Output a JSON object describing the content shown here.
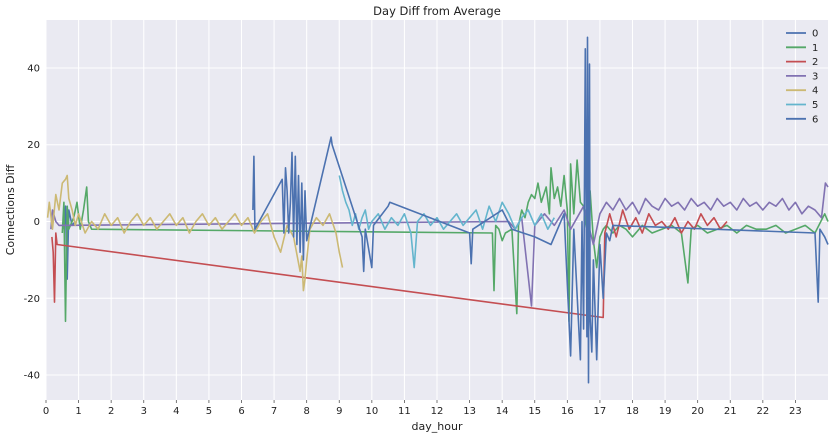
{
  "chart_data": {
    "type": "line",
    "title": "Day Diff from Average",
    "xlabel": "day_hour",
    "ylabel": "Connections Diff",
    "xlim": [
      0,
      24
    ],
    "ylim": [
      -46.5,
      52.5
    ],
    "x_ticks": [
      0,
      1,
      2,
      3,
      4,
      5,
      6,
      7,
      8,
      9,
      10,
      11,
      12,
      13,
      14,
      15,
      16,
      17,
      18,
      19,
      20,
      21,
      22,
      23
    ],
    "y_ticks": [
      -40,
      -20,
      0,
      20,
      40
    ],
    "grid": true,
    "legend_position": "top-right",
    "series": [
      {
        "name": "0",
        "color": "#4c72b0",
        "points": [
          [
            0.55,
            -2
          ],
          [
            0.6,
            4
          ],
          [
            0.65,
            -15
          ],
          [
            0.7,
            3
          ],
          [
            0.8,
            -1
          ],
          [
            0.9,
            0
          ]
        ]
      },
      {
        "name": "1",
        "color": "#55a868",
        "points": [
          [
            0.5,
            -3
          ],
          [
            0.55,
            5
          ],
          [
            0.6,
            -26
          ],
          [
            0.65,
            4
          ],
          [
            0.7,
            -2
          ],
          [
            0.85,
            1
          ],
          [
            0.95,
            5
          ],
          [
            1.05,
            -2
          ],
          [
            1.15,
            3
          ],
          [
            1.25,
            9
          ],
          [
            1.3,
            0
          ],
          [
            1.4,
            -2
          ],
          [
            13.7,
            -3
          ],
          [
            13.75,
            -18
          ],
          [
            13.8,
            -1
          ],
          [
            13.9,
            -2
          ],
          [
            14.0,
            -5
          ],
          [
            14.1,
            -3
          ],
          [
            14.3,
            -2
          ],
          [
            14.45,
            -24
          ],
          [
            14.5,
            -1
          ],
          [
            14.6,
            3
          ],
          [
            14.7,
            1
          ],
          [
            14.8,
            5
          ],
          [
            14.9,
            7
          ],
          [
            15.0,
            6
          ],
          [
            15.1,
            10
          ],
          [
            15.2,
            5
          ],
          [
            15.35,
            9
          ],
          [
            15.45,
            2
          ],
          [
            15.5,
            14
          ],
          [
            15.6,
            6
          ],
          [
            15.7,
            9
          ],
          [
            15.8,
            4
          ],
          [
            15.9,
            12
          ],
          [
            16.0,
            3
          ],
          [
            16.05,
            -26
          ],
          [
            16.1,
            15
          ],
          [
            16.2,
            2
          ],
          [
            16.3,
            16
          ],
          [
            16.4,
            5
          ],
          [
            16.5,
            4
          ],
          [
            16.6,
            -3
          ],
          [
            16.7,
            8
          ],
          [
            16.8,
            -5
          ],
          [
            16.9,
            -12
          ],
          [
            17.0,
            -4
          ],
          [
            17.1,
            -2
          ],
          [
            17.2,
            -1
          ],
          [
            17.4,
            -3
          ],
          [
            17.6,
            -1
          ],
          [
            17.8,
            -2
          ],
          [
            18.0,
            -4
          ],
          [
            18.3,
            -1
          ],
          [
            18.6,
            -3
          ],
          [
            18.9,
            -2
          ],
          [
            19.2,
            -1
          ],
          [
            19.5,
            -3
          ],
          [
            19.7,
            -16
          ],
          [
            19.8,
            -2
          ],
          [
            20.0,
            -1
          ],
          [
            20.3,
            -3
          ],
          [
            20.6,
            -2
          ],
          [
            20.9,
            -1
          ],
          [
            21.2,
            -3
          ],
          [
            21.5,
            -1
          ],
          [
            21.8,
            -2
          ],
          [
            22.1,
            -2
          ],
          [
            22.4,
            -1
          ],
          [
            22.7,
            -3
          ],
          [
            23.0,
            -2
          ],
          [
            23.3,
            -1
          ],
          [
            23.6,
            -3
          ],
          [
            23.9,
            2
          ],
          [
            24.0,
            0
          ]
        ]
      },
      {
        "name": "2",
        "color": "#c44e52",
        "points": [
          [
            0.18,
            -4
          ],
          [
            0.22,
            -8
          ],
          [
            0.26,
            -21
          ],
          [
            0.3,
            -3
          ],
          [
            0.34,
            -6
          ],
          [
            17.1,
            -25
          ],
          [
            17.15,
            -3
          ],
          [
            17.3,
            2
          ],
          [
            17.5,
            -4
          ],
          [
            17.7,
            3
          ],
          [
            17.9,
            -2
          ],
          [
            18.1,
            1
          ],
          [
            18.3,
            -3
          ],
          [
            18.5,
            2
          ],
          [
            18.7,
            -1
          ],
          [
            18.9,
            0
          ],
          [
            19.1,
            -2
          ],
          [
            19.3,
            1
          ],
          [
            19.5,
            -3
          ],
          [
            19.7,
            0
          ],
          [
            19.9,
            -2
          ],
          [
            20.1,
            2
          ],
          [
            20.3,
            -1
          ],
          [
            20.5,
            1
          ],
          [
            20.7,
            -2
          ],
          [
            20.9,
            0
          ]
        ]
      },
      {
        "name": "3",
        "color": "#8172b2",
        "points": [
          [
            0.15,
            -2
          ],
          [
            0.2,
            3
          ],
          [
            0.3,
            0
          ],
          [
            0.4,
            -1
          ],
          [
            14.2,
            0
          ],
          [
            14.4,
            -2
          ],
          [
            14.6,
            1
          ],
          [
            14.9,
            -22
          ],
          [
            15.0,
            -1
          ],
          [
            15.3,
            2
          ],
          [
            15.6,
            -1
          ],
          [
            15.9,
            3
          ],
          [
            16.1,
            -2
          ],
          [
            16.5,
            4
          ],
          [
            16.8,
            -6
          ],
          [
            17.0,
            2
          ],
          [
            17.2,
            5
          ],
          [
            17.4,
            3
          ],
          [
            17.6,
            6
          ],
          [
            17.8,
            3
          ],
          [
            18.0,
            5
          ],
          [
            18.2,
            2
          ],
          [
            18.4,
            6
          ],
          [
            18.6,
            4
          ],
          [
            18.8,
            3
          ],
          [
            19.0,
            6
          ],
          [
            19.2,
            4
          ],
          [
            19.4,
            5
          ],
          [
            19.6,
            3
          ],
          [
            19.8,
            6
          ],
          [
            20.0,
            4
          ],
          [
            20.2,
            5
          ],
          [
            20.4,
            3
          ],
          [
            20.6,
            6
          ],
          [
            20.8,
            4
          ],
          [
            21.0,
            5
          ],
          [
            21.2,
            3
          ],
          [
            21.4,
            6
          ],
          [
            21.6,
            4
          ],
          [
            21.8,
            5
          ],
          [
            22.0,
            3
          ],
          [
            22.2,
            5
          ],
          [
            22.4,
            4
          ],
          [
            22.6,
            6
          ],
          [
            22.8,
            3
          ],
          [
            23.0,
            5
          ],
          [
            23.2,
            2
          ],
          [
            23.4,
            4
          ],
          [
            23.6,
            3
          ],
          [
            23.8,
            1
          ],
          [
            23.92,
            10
          ],
          [
            24.0,
            9
          ]
        ]
      },
      {
        "name": "4",
        "color": "#ccb974",
        "points": [
          [
            0.05,
            1
          ],
          [
            0.1,
            5
          ],
          [
            0.2,
            -2
          ],
          [
            0.3,
            7
          ],
          [
            0.4,
            3
          ],
          [
            0.5,
            10
          ],
          [
            0.6,
            11
          ],
          [
            0.65,
            12
          ],
          [
            0.7,
            6
          ],
          [
            0.8,
            3
          ],
          [
            0.9,
            -1
          ],
          [
            1.0,
            2
          ],
          [
            1.2,
            -3
          ],
          [
            1.4,
            0
          ],
          [
            1.6,
            -2
          ],
          [
            1.8,
            2
          ],
          [
            2.0,
            -1
          ],
          [
            2.2,
            1
          ],
          [
            2.4,
            -3
          ],
          [
            2.6,
            0
          ],
          [
            2.8,
            2
          ],
          [
            3.0,
            -1
          ],
          [
            3.2,
            1
          ],
          [
            3.4,
            -2
          ],
          [
            3.6,
            0
          ],
          [
            3.8,
            2
          ],
          [
            4.0,
            -1
          ],
          [
            4.2,
            1
          ],
          [
            4.4,
            -3
          ],
          [
            4.6,
            0
          ],
          [
            4.8,
            2
          ],
          [
            5.0,
            -1
          ],
          [
            5.2,
            1
          ],
          [
            5.4,
            -2
          ],
          [
            5.6,
            0
          ],
          [
            5.8,
            2
          ],
          [
            6.0,
            -1
          ],
          [
            6.2,
            1
          ],
          [
            6.4,
            -3
          ],
          [
            6.6,
            0
          ],
          [
            6.8,
            2
          ],
          [
            7.0,
            -4
          ],
          [
            7.2,
            -8
          ],
          [
            7.4,
            -1
          ],
          [
            7.6,
            -4
          ],
          [
            7.8,
            -13
          ],
          [
            7.85,
            -9
          ],
          [
            7.9,
            -18
          ],
          [
            7.95,
            -15
          ],
          [
            8.0,
            -10
          ],
          [
            8.1,
            -2
          ],
          [
            8.3,
            1
          ],
          [
            8.5,
            -1
          ],
          [
            8.7,
            2
          ],
          [
            8.9,
            -3
          ],
          [
            9.0,
            -8
          ],
          [
            9.1,
            -12
          ]
        ]
      },
      {
        "name": "5",
        "color": "#64b5cd",
        "points": [
          [
            9.0,
            12
          ],
          [
            9.1,
            8
          ],
          [
            9.2,
            5
          ],
          [
            9.3,
            3
          ],
          [
            9.4,
            -1
          ],
          [
            9.5,
            2
          ],
          [
            9.6,
            -2
          ],
          [
            9.7,
            1
          ],
          [
            9.8,
            3
          ],
          [
            9.9,
            -2
          ],
          [
            10.0,
            0
          ],
          [
            10.2,
            2
          ],
          [
            10.4,
            -2
          ],
          [
            10.6,
            1
          ],
          [
            10.8,
            -1
          ],
          [
            11.0,
            2
          ],
          [
            11.2,
            -3
          ],
          [
            11.3,
            -12
          ],
          [
            11.4,
            0
          ],
          [
            11.6,
            2
          ],
          [
            11.8,
            -1
          ],
          [
            12.0,
            1
          ],
          [
            12.2,
            -2
          ],
          [
            12.4,
            0
          ],
          [
            12.6,
            2
          ],
          [
            12.8,
            -1
          ],
          [
            13.0,
            1
          ],
          [
            13.2,
            3
          ],
          [
            13.4,
            -2
          ],
          [
            13.6,
            4
          ],
          [
            13.8,
            0
          ],
          [
            14.0,
            5
          ],
          [
            14.2,
            2
          ],
          [
            14.4,
            -2
          ],
          [
            14.6,
            1
          ],
          [
            14.8,
            3
          ],
          [
            15.0,
            -1
          ],
          [
            15.2,
            2
          ],
          [
            15.4,
            -2
          ],
          [
            15.6,
            1
          ]
        ]
      },
      {
        "name": "6",
        "color": "#4c72b0",
        "points": [
          [
            6.35,
            3
          ],
          [
            6.38,
            17
          ],
          [
            6.41,
            -2
          ],
          [
            7.25,
            11
          ],
          [
            7.3,
            -3
          ],
          [
            7.35,
            14
          ],
          [
            7.4,
            8
          ],
          [
            7.45,
            -3
          ],
          [
            7.5,
            5
          ],
          [
            7.55,
            18
          ],
          [
            7.6,
            -4
          ],
          [
            7.65,
            17
          ],
          [
            7.7,
            -6
          ],
          [
            7.75,
            12
          ],
          [
            7.8,
            -8
          ],
          [
            7.85,
            10
          ],
          [
            7.9,
            -10
          ],
          [
            7.95,
            8
          ],
          [
            8.0,
            -5
          ],
          [
            8.75,
            22
          ],
          [
            8.78,
            20
          ],
          [
            9.7,
            -4
          ],
          [
            9.75,
            -13
          ],
          [
            9.8,
            -2
          ],
          [
            10.0,
            -12
          ],
          [
            10.05,
            -1
          ],
          [
            10.5,
            4
          ],
          [
            10.55,
            5
          ],
          [
            13.0,
            -3
          ],
          [
            13.05,
            -11
          ],
          [
            13.1,
            -2
          ],
          [
            14.0,
            3
          ],
          [
            14.3,
            -2
          ],
          [
            15.0,
            -4
          ],
          [
            15.5,
            -6
          ],
          [
            15.9,
            2
          ],
          [
            16.1,
            -35
          ],
          [
            16.2,
            -2
          ],
          [
            16.4,
            -36
          ],
          [
            16.45,
            0
          ],
          [
            16.5,
            -28
          ],
          [
            16.55,
            45
          ],
          [
            16.6,
            -30
          ],
          [
            16.62,
            48
          ],
          [
            16.65,
            -42
          ],
          [
            16.68,
            41
          ],
          [
            16.7,
            -25
          ],
          [
            16.75,
            -34
          ],
          [
            16.8,
            -10
          ],
          [
            16.9,
            -36
          ],
          [
            17.0,
            -6
          ],
          [
            17.1,
            -20
          ],
          [
            17.2,
            -3
          ],
          [
            17.3,
            -5
          ],
          [
            17.4,
            -1
          ],
          [
            23.6,
            -3
          ],
          [
            23.7,
            -21
          ],
          [
            23.75,
            -2
          ],
          [
            23.9,
            -4
          ],
          [
            24.0,
            -6
          ]
        ]
      }
    ]
  }
}
